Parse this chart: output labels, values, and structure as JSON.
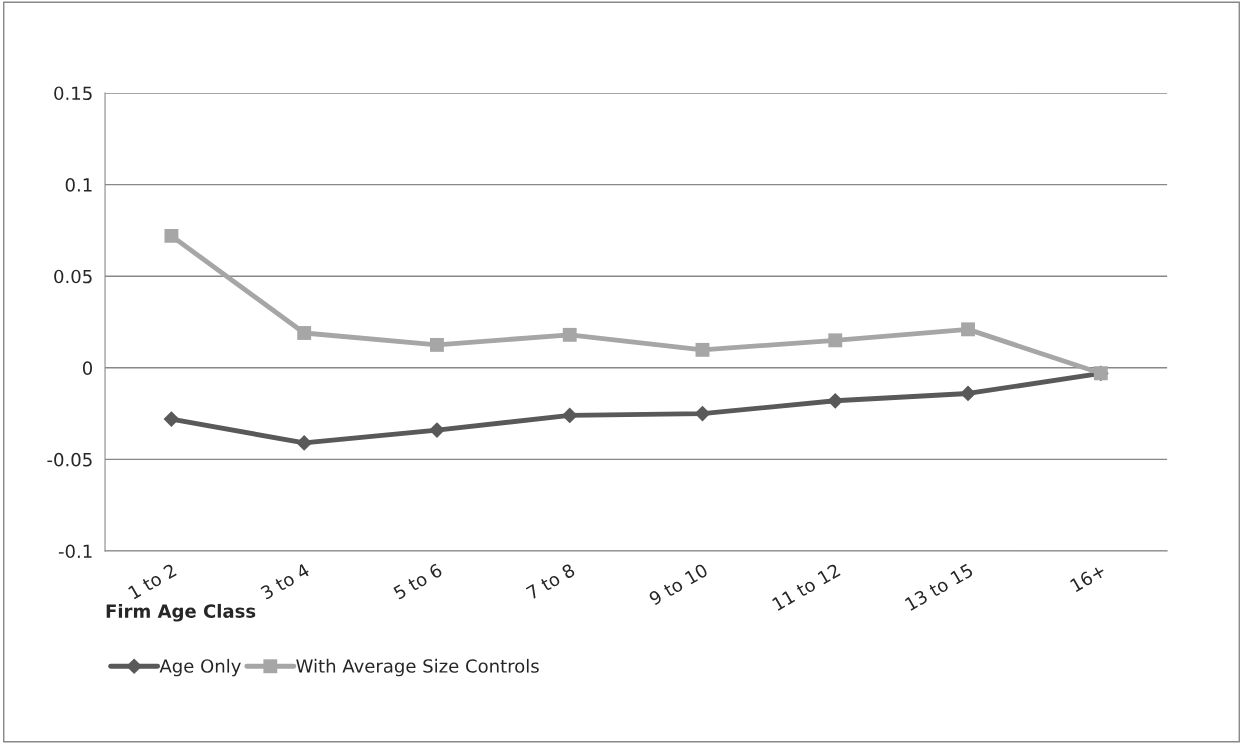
{
  "chart_data": {
    "type": "line",
    "xlabel": "Firm Age Class",
    "categories": [
      "1 to 2",
      "3 to 4",
      "5 to 6",
      "7 to 8",
      "9 to 10",
      "11 to 12",
      "13 to 15",
      "16+"
    ],
    "series": [
      {
        "name": "Age Only",
        "color": "#595959",
        "marker": "diamond",
        "values": [
          -0.028,
          -0.041,
          -0.034,
          -0.026,
          -0.025,
          -0.018,
          -0.014,
          -0.003
        ]
      },
      {
        "name": "With Average Size Controls",
        "color": "#a6a6a6",
        "marker": "square",
        "values": [
          0.072,
          0.019,
          0.0125,
          0.018,
          0.0098,
          0.015,
          0.021,
          -0.003
        ]
      }
    ],
    "ylim": [
      -0.1,
      0.15
    ],
    "yticks": [
      -0.1,
      -0.05,
      0,
      0.05,
      0.1,
      0.15
    ],
    "grid": "y",
    "legend": "bottom left",
    "line_style": "solid"
  }
}
